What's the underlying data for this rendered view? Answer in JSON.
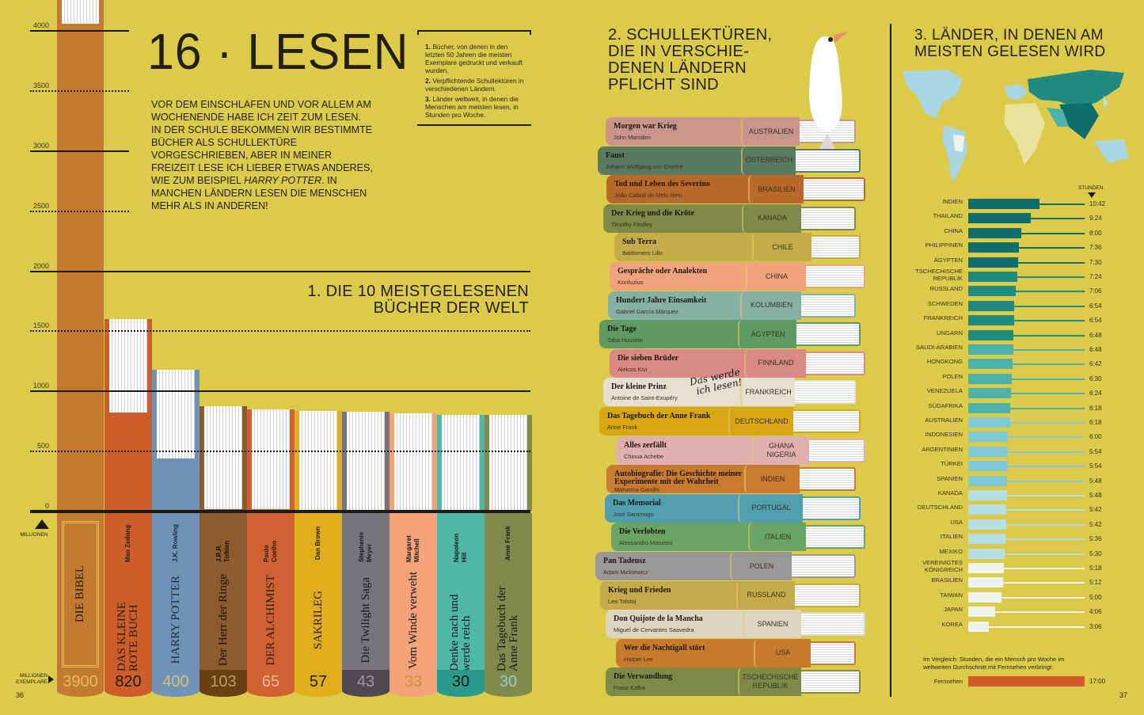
{
  "page": {
    "number_left": "36",
    "number_right": "37",
    "divider_color": "#1b1a14",
    "background": "#dccb4a"
  },
  "header": {
    "title": "16 · LESEN",
    "intro_parts": [
      "VOR DEM EINSCHLAFEN UND VOR ALLEM AM WOCHENENDE HABE ICH ZEIT ZUM LESEN. IN DER SCHULE BEKOMMEN WIR BESTIMMTE BÜCHER ALS SCHULLEKTÜRE VORGESCHRIEBEN, ABER IN MEINER FREIZEIT LESE ICH LIEBER ETWAS ANDERES, WIE ZUM BEISPIEL ",
      "HARRY POTTER",
      ". IN MANCHEN LÄNDERN LESEN DIE MENSCHEN MEHR ALS IN ANDEREN!"
    ]
  },
  "legend": [
    {
      "num": "1.",
      "text": " Bücher, von denen in den letzten 50 Jahren die meisten Exemplare gedruckt und verkauft wurden."
    },
    {
      "num": "2.",
      "text": " Verpflichtende Schullektüren in verschiedenen Ländern."
    },
    {
      "num": "3.",
      "text": " Länder weltweit, in denen die Menschen am meisten lesen, in Stunden pro Woche."
    }
  ],
  "section1": {
    "title_line1": "1. DIE 10 MEISTGELESENEN",
    "title_line2": "BÜCHER DER WELT",
    "axis_unit": "MILLIONEN",
    "copies_label_1": "MILLIONEN",
    "copies_label_2": "EXEMPLARE"
  },
  "section2": {
    "title_lines": [
      "2. SCHULLEKTÜREN,",
      "DIE IN VERSCHIE-",
      "DENEN LÄNDERN",
      "PFLICHT SIND"
    ],
    "note_line1": "Das werde",
    "note_line2": "ich lesen!"
  },
  "section3": {
    "title_lines": [
      "3. LÄNDER, IN DENEN AM",
      "MEISTEN GELESEN WIRD"
    ],
    "unit": "STUNDEN",
    "compare_text": "Im Vergleich: Stunden, die ein Mensch pro Woche im weltweiten Durchschnitt mit Fernsehen verbringt:",
    "tv_label": "Fernsehen",
    "tv_value": "17:00",
    "tv_color": "#d15b2a"
  },
  "chart_data": [
    {
      "type": "bar",
      "title": "1. DIE 10 MEISTGELESENEN BÜCHER DER WELT",
      "ylabel": "MILLIONEN",
      "ylim": [
        0,
        4000
      ],
      "yticks": [
        "4000",
        "3500",
        "3000",
        "2500",
        "2000",
        "1500",
        "1000",
        "500",
        "0"
      ],
      "categories": [
        "DIE BIBEL",
        "DAS KLEINE ROTE BUCH",
        "HARRY POTTER",
        "Der Herr der Ringe",
        "DER ALCHIMIST",
        "SAKRILEG",
        "Die Twilight Saga",
        "Vom Winde verweht",
        "Denke nach und werde reich",
        "Das Tagebuch der Anne Frank"
      ],
      "values": [
        3900,
        820,
        400,
        103,
        65,
        57,
        43,
        33,
        30,
        30
      ]
    },
    {
      "type": "bar",
      "orientation": "horizontal",
      "title": "3. LÄNDER, IN DENEN AM MEISTEN GELESEN WIRD",
      "xlabel": "STUNDEN",
      "categories": [
        "INDIEN",
        "THAILAND",
        "CHINA",
        "PHILIPPINEN",
        "ÄGYPTEN",
        "TSCHECHISCHE REPUBLIK",
        "RUSSLAND",
        "SCHWEDEN",
        "FRANKREICH",
        "UNGARN",
        "SAUDI-ARABIEN",
        "HONGKONG",
        "POLEN",
        "VENEZUELA",
        "SÜDAFRIKA",
        "AUSTRALIEN",
        "INDONESIEN",
        "ARGENTINIEN",
        "TÜRKEI",
        "SPANIEN",
        "KANADA",
        "DEUTSCHLAND",
        "USA",
        "ITALIEN",
        "MEXIKO",
        "VEREINIGTES KÖNIGREICH",
        "BRASILIEN",
        "TAIWAN",
        "JAPAN",
        "KOREA"
      ],
      "values": [
        "10:42",
        "9:24",
        "8:00",
        "7:36",
        "7:30",
        "7:24",
        "7:06",
        "6:54",
        "6:54",
        "6:48",
        "6:48",
        "6:42",
        "6:30",
        "6:24",
        "6:18",
        "6:18",
        "6:00",
        "5:54",
        "5:54",
        "5:48",
        "5:48",
        "5:42",
        "5:42",
        "5:36",
        "5:30",
        "5:18",
        "5:12",
        "5:00",
        "4:06",
        "3:06"
      ]
    }
  ],
  "top_books": [
    {
      "title": "DIE BIBEL",
      "author": "",
      "copies": "3900",
      "color": "#c27a30",
      "num_color": "#e8b75e",
      "text_color": "#2a1a10"
    },
    {
      "title": "DAS KLEINE ROTE BUCH",
      "author": "Mao Zedong",
      "copies": "820",
      "color": "#cc5e2c",
      "num_color": "#2a1a10",
      "text_color": "#2a1a10"
    },
    {
      "title": "HARRY POTTER",
      "author": "J.K. Rowling",
      "copies": "400",
      "color": "#6f93b8",
      "num_color": "#d9c06a",
      "text_color": "#1e2a3a"
    },
    {
      "title": "Der Herr der Ringe",
      "author": "J.R.R. Tolkien",
      "copies": "103",
      "color": "#8c5c2e",
      "num_color": "#c49a60",
      "text_color": "#1a1008",
      "bottom": "#6a4012"
    },
    {
      "title": "DER ALCHIMIST",
      "author": "Paulo Coelho",
      "copies": "65",
      "color": "#cf6230",
      "num_color": "#f3b79a",
      "text_color": "#2a1a10"
    },
    {
      "title": "SAKRILEG",
      "author": "Dan Brown",
      "copies": "57",
      "color": "#e0ae1a",
      "num_color": "#2a1a10",
      "text_color": "#2a1a10"
    },
    {
      "title": "Die Twilight Saga",
      "author": "Stephenie Meyer",
      "copies": "43",
      "color": "#77757a",
      "num_color": "#9a989d",
      "text_color": "#1a1a1a",
      "bottom": "#4e4a50"
    },
    {
      "title": "Vom Winde verweht",
      "author": "Margaret Mitchell",
      "copies": "33",
      "color": "#f3a27a",
      "num_color": "#d0913a",
      "text_color": "#1a1a1a"
    },
    {
      "title": "Denke nach und werde reich",
      "author": "Napoleon Hill",
      "copies": "30",
      "color": "#4fb7a8",
      "num_color": "#1a1a1a",
      "text_color": "#1a1a1a",
      "bottom": "#2b9a8c"
    },
    {
      "title": "Das Tagebuch der Anne Frank",
      "author": "Anne Frank",
      "copies": "30",
      "color": "#7f8a4c",
      "num_color": "#8ecfc8",
      "text_color": "#1a1a1a"
    }
  ],
  "school_books": [
    {
      "title": "Morgen war Krieg",
      "author": "John Marsden",
      "country": "AUSTRALIEN",
      "color": "#c9958a"
    },
    {
      "title": "Faust",
      "author": "Johann Wolfgang von Goethe",
      "country": "ÖSTERREICH",
      "color": "#5a7a60"
    },
    {
      "title": "Tod und Leben des Severino",
      "author": "João Cabral de Melo Neto",
      "country": "BRASILIEN",
      "color": "#b8692a"
    },
    {
      "title": "Der Krieg und die Kröte",
      "author": "Timothy Findley",
      "country": "KANADA",
      "color": "#7e8a48"
    },
    {
      "title": "Sub Terra",
      "author": "Baldomero Lillo",
      "country": "CHILE",
      "color": "#c4ad48"
    },
    {
      "title": "Gespräche oder Analekten",
      "author": "Konfuzius",
      "country": "CHINA",
      "color": "#f0a27c"
    },
    {
      "title": "Hundert Jahre Einsamkeit",
      "author": "Gabriel García Márquez",
      "country": "KOLUMBIEN",
      "color": "#87b0a4"
    },
    {
      "title": "Die Tage",
      "author": "Taha Hussein",
      "country": "ÄGYPTEN",
      "color": "#5e9a62"
    },
    {
      "title": "Die sieben Brüder",
      "author": "Aleksis Kivi",
      "country": "FINNLAND",
      "color": "#d98a84"
    },
    {
      "title": "Der kleine Prinz",
      "author": "Antoine de Saint-Exupéry",
      "country": "FRANKREICH",
      "color": "#e5e0cf"
    },
    {
      "title": "Das Tagebuch der Anne Frank",
      "author": "Anne Frank",
      "country": "DEUTSCHLAND",
      "color": "#d7a612"
    },
    {
      "title": "Alles zerfällt",
      "author": "Chinua Achebe",
      "country": "GHANA NIGERIA",
      "color": "#dfb0ac"
    },
    {
      "title": "Autobiografie: Die Geschichte meiner Experimente mit der Wahrheit",
      "author": "Mahatma Gandhi",
      "country": "INDIEN",
      "color": "#c77a30"
    },
    {
      "title": "Das Memorial",
      "author": "José Saramago",
      "country": "PORTUGAL",
      "color": "#4f9fae"
    },
    {
      "title": "Die Verlobten",
      "author": "Alessandro Manzoni",
      "country": "ITALIEN",
      "color": "#6aa464"
    },
    {
      "title": "Pan Tadeusz",
      "author": "Adam Mickiewicz",
      "country": "POLEN",
      "color": "#9a9896"
    },
    {
      "title": "Krieg und Frieden",
      "author": "Leo Tolstoj",
      "country": "RUSSLAND",
      "color": "#c4aa48"
    },
    {
      "title": "Don Quijote de la Mancha",
      "author": "Miguel de Cervantes Saavedra",
      "country": "SPANIEN",
      "color": "#ddd5c0"
    },
    {
      "title": "Wer die Nachtigall stört",
      "author": "Harper Lee",
      "country": "USA",
      "color": "#c87a2c"
    },
    {
      "title": "Die Verwandlung",
      "author": "Franz Kafka",
      "country": "TSCHECHISCHE REPUBLIK",
      "color": "#7e8a48"
    }
  ],
  "country_colors": [
    "#0e6e6a",
    "#1f8a80",
    "#4db3a8",
    "#7ec9d6",
    "#b9dfe6",
    "#eef3ee"
  ]
}
